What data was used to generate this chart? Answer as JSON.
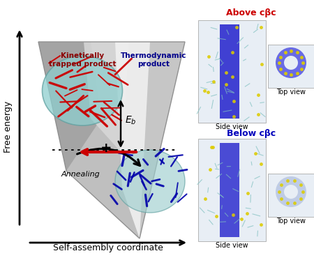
{
  "bg_color": "#ffffff",
  "label_free_energy": "Free energy",
  "label_x_axis": "Self-assembly coordinate",
  "label_kinetic": "Kinetically\ntrapped product",
  "label_kinetic_color": "#8b0000",
  "label_thermo": "Thermodynamic\nproduct",
  "label_thermo_color": "#00008b",
  "label_eb": "$E_b$",
  "label_annealing": "Annealing",
  "label_above": "Above cβc",
  "label_above_color": "#cc0000",
  "label_below": "Below cβc",
  "label_below_color": "#0000bb",
  "label_top_view": "Top view",
  "label_side_view": "Side view",
  "funnel_gray_outer": "#b0b0b0",
  "funnel_gray_mid": "#d0d0d0",
  "funnel_gray_light": "#ececec",
  "funnel_white": "#f8f8f8",
  "kinetic_ellipse_color": "#8ecece",
  "thermo_ellipse_color": "#9ecece"
}
